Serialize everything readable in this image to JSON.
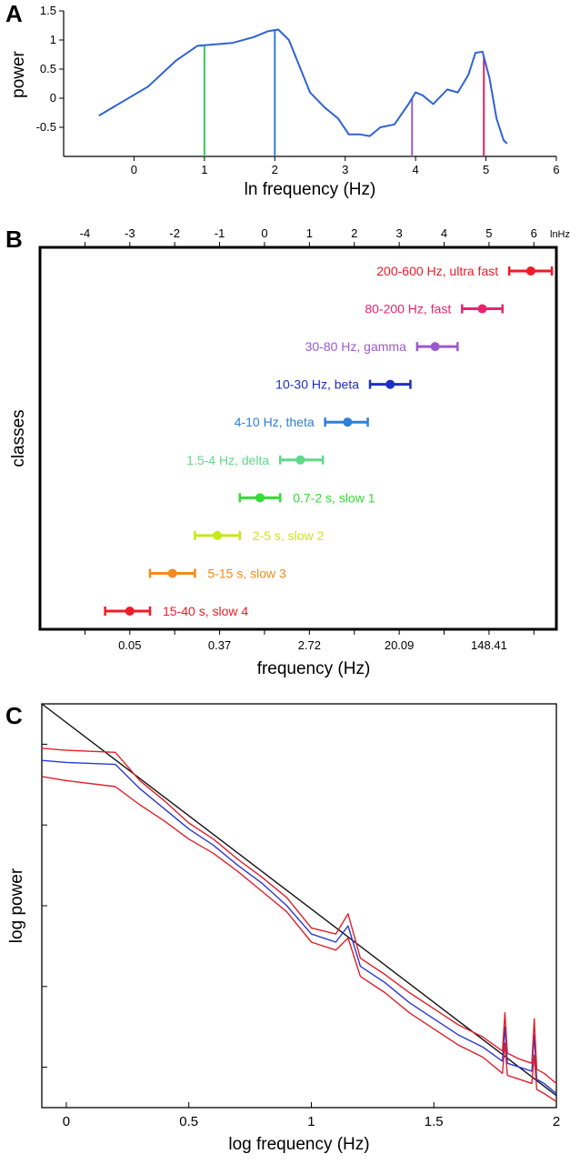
{
  "panels": {
    "a": "A",
    "b": "B",
    "c": "C"
  },
  "chart_data": [
    {
      "panel": "A",
      "type": "line",
      "xlabel": "ln frequency (Hz)",
      "ylabel": "power",
      "xlim": [
        -1,
        6
      ],
      "ylim": [
        -1,
        1.5
      ],
      "xticks": [
        0,
        1,
        2,
        3,
        4,
        5,
        6
      ],
      "yticks": [
        -0.5,
        0,
        0.5,
        1,
        1.5
      ],
      "ytick_labels": [
        "-0.5",
        "0",
        "0.5",
        "1",
        "1.5"
      ],
      "series": [
        {
          "color": "#2f62d6",
          "x": [
            -0.5,
            0.2,
            0.6,
            0.9,
            1.1,
            1.4,
            1.7,
            1.9,
            2.05,
            2.2,
            2.35,
            2.5,
            2.7,
            2.9,
            3.05,
            3.2,
            3.35,
            3.5,
            3.7,
            3.9,
            4.0,
            4.1,
            4.25,
            4.45,
            4.6,
            4.75,
            4.85,
            4.95,
            5.05,
            5.15,
            5.25,
            5.3
          ],
          "y": [
            -0.3,
            0.2,
            0.65,
            0.9,
            0.92,
            0.95,
            1.05,
            1.15,
            1.18,
            1.0,
            0.55,
            0.1,
            -0.15,
            -0.35,
            -0.62,
            -0.62,
            -0.65,
            -0.5,
            -0.45,
            -0.1,
            0.1,
            0.05,
            -0.1,
            0.15,
            0.1,
            0.4,
            0.78,
            0.8,
            0.35,
            -0.35,
            -0.72,
            -0.78
          ]
        }
      ],
      "markers": [
        {
          "x": 1,
          "color": "#33cc55"
        },
        {
          "x": 2,
          "color": "#2f7fd6"
        },
        {
          "x": 3.95,
          "color": "#9b59d0"
        },
        {
          "x": 4.97,
          "color": "#e0245e"
        }
      ]
    },
    {
      "panel": "B",
      "type": "scatter",
      "ylabel": "classes",
      "xlabel_bottom": "frequency (Hz)",
      "top_axis_unit": "lnHz",
      "xlim": [
        -5,
        6.5
      ],
      "top_ticks": [
        -4,
        -3,
        -2,
        -1,
        0,
        1,
        2,
        3,
        4,
        5,
        6
      ],
      "bottom_ticks": [
        -3,
        -1,
        1,
        3,
        5
      ],
      "bottom_tick_labels": [
        "0.05",
        "0.37",
        "2.72",
        "20.09",
        "148.41"
      ],
      "classes": [
        {
          "label": "200-600 Hz, ultra fast",
          "x": 5.93,
          "lo": 5.45,
          "hi": 6.4,
          "color": "#ee1c25",
          "label_side": "left"
        },
        {
          "label": "80-200 Hz, fast",
          "x": 4.85,
          "lo": 4.4,
          "hi": 5.3,
          "color": "#e8246f",
          "label_side": "left"
        },
        {
          "label": "30-80 Hz, gamma",
          "x": 3.8,
          "lo": 3.4,
          "hi": 4.3,
          "color": "#9b59d0",
          "label_side": "left"
        },
        {
          "label": "10-30 Hz, beta",
          "x": 2.8,
          "lo": 2.35,
          "hi": 3.25,
          "color": "#1e2fc6",
          "label_side": "left"
        },
        {
          "label": "4-10 Hz, theta",
          "x": 1.85,
          "lo": 1.35,
          "hi": 2.3,
          "color": "#2f7fd6",
          "label_side": "left"
        },
        {
          "label": "1.5-4 Hz, delta",
          "x": 0.8,
          "lo": 0.35,
          "hi": 1.3,
          "color": "#5fd98a",
          "label_side": "left"
        },
        {
          "label": "0.7-2 s, slow 1",
          "x": -0.1,
          "lo": -0.55,
          "hi": 0.35,
          "color": "#33dd33",
          "label_side": "right"
        },
        {
          "label": "2-5 s, slow 2",
          "x": -1.05,
          "lo": -1.55,
          "hi": -0.55,
          "color": "#c6e81c",
          "label_side": "right"
        },
        {
          "label": "5-15 s, slow 3",
          "x": -2.05,
          "lo": -2.55,
          "hi": -1.55,
          "color": "#f28a1e",
          "label_side": "right"
        },
        {
          "label": "15-40 s, slow 4",
          "x": -3.0,
          "lo": -3.55,
          "hi": -2.55,
          "color": "#ee1c25",
          "label_side": "right"
        }
      ]
    },
    {
      "panel": "C",
      "type": "line",
      "xlabel": "log frequency (Hz)",
      "ylabel": "log power",
      "xlim": [
        -0.1,
        2.0
      ],
      "ylim": [
        0,
        10
      ],
      "xticks": [
        0,
        0.5,
        1,
        1.5,
        2
      ],
      "xtick_labels": [
        "0",
        "0.5",
        "1",
        "1.5",
        "2"
      ],
      "yticks": [
        1.0,
        3.0,
        5.0,
        7.0,
        9.0
      ],
      "series": [
        {
          "color": "#111111",
          "x": [
            -0.1,
            2.0
          ],
          "y": [
            10.0,
            0.3
          ]
        },
        {
          "color": "#2838d6",
          "x": [
            -0.1,
            0.0,
            0.2,
            0.3,
            0.4,
            0.5,
            0.6,
            0.7,
            0.8,
            0.9,
            1.0,
            1.1,
            1.15,
            1.2,
            1.3,
            1.4,
            1.5,
            1.6,
            1.7,
            1.78,
            1.79,
            1.8,
            1.85,
            1.9,
            1.91,
            1.92,
            1.95,
            2.0
          ],
          "y": [
            8.6,
            8.55,
            8.5,
            7.9,
            7.4,
            6.9,
            6.5,
            6.0,
            5.55,
            5.0,
            4.3,
            4.1,
            4.5,
            3.5,
            3.1,
            2.6,
            2.2,
            1.8,
            1.5,
            1.15,
            2.0,
            1.1,
            1.0,
            0.9,
            1.8,
            0.7,
            0.6,
            0.35
          ]
        },
        {
          "color": "#e0202a",
          "x": [
            -0.1,
            0.0,
            0.2,
            0.3,
            0.4,
            0.5,
            0.6,
            0.7,
            0.8,
            0.9,
            1.0,
            1.1,
            1.15,
            1.2,
            1.3,
            1.4,
            1.5,
            1.6,
            1.7,
            1.78,
            1.79,
            1.8,
            1.85,
            1.9,
            1.91,
            1.92,
            1.95,
            2.0
          ],
          "y": [
            8.9,
            8.85,
            8.8,
            8.1,
            7.6,
            7.05,
            6.65,
            6.15,
            5.7,
            5.2,
            4.45,
            4.3,
            4.8,
            3.7,
            3.3,
            2.85,
            2.45,
            2.05,
            1.75,
            1.4,
            2.35,
            1.35,
            1.2,
            1.1,
            2.2,
            0.95,
            0.85,
            0.6
          ]
        },
        {
          "color": "#e0202a",
          "x": [
            -0.1,
            0.0,
            0.2,
            0.3,
            0.4,
            0.5,
            0.6,
            0.7,
            0.8,
            0.9,
            1.0,
            1.1,
            1.15,
            1.2,
            1.3,
            1.4,
            1.5,
            1.6,
            1.7,
            1.78,
            1.79,
            1.8,
            1.85,
            1.9,
            1.91,
            1.92,
            1.95,
            2.0
          ],
          "y": [
            8.2,
            8.1,
            7.95,
            7.5,
            7.1,
            6.65,
            6.3,
            5.85,
            5.35,
            4.85,
            4.1,
            3.9,
            4.2,
            3.25,
            2.85,
            2.35,
            1.95,
            1.55,
            1.25,
            0.85,
            1.6,
            0.8,
            0.7,
            0.6,
            1.3,
            0.45,
            0.35,
            0.15
          ]
        }
      ]
    }
  ]
}
